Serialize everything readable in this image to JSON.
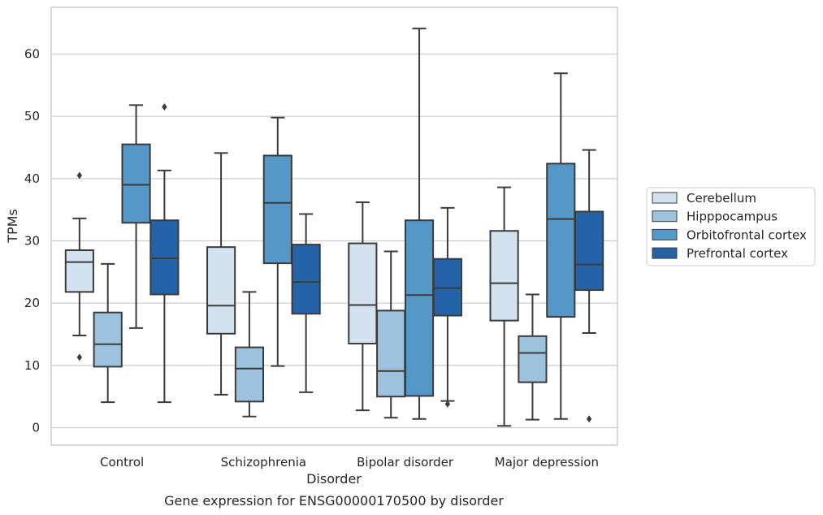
{
  "caption": "Gene expression for ENSG00000170500 by disorder",
  "chart_data": {
    "type": "box",
    "xlabel": "Disorder",
    "ylabel": "TPMs",
    "ylim": [
      -2.8,
      67.5
    ],
    "yticks": [
      0,
      10,
      20,
      30,
      40,
      50,
      60
    ],
    "grid": "horizontal",
    "legend_position": "right",
    "categories": [
      "Control",
      "Schizophrenia",
      "Bipolar disorder",
      "Major depression"
    ],
    "series": [
      {
        "name": "Cerebellum",
        "color": "#d4e2f0",
        "boxes": [
          {
            "whisker_low": 14.8,
            "q1": 21.8,
            "median": 26.6,
            "q3": 28.5,
            "whisker_high": 33.6,
            "outliers": [
              40.5,
              11.3
            ]
          },
          {
            "whisker_low": 5.3,
            "q1": 15.1,
            "median": 19.6,
            "q3": 29.0,
            "whisker_high": 44.1,
            "outliers": []
          },
          {
            "whisker_low": 2.8,
            "q1": 13.5,
            "median": 19.7,
            "q3": 29.6,
            "whisker_high": 36.2,
            "outliers": []
          },
          {
            "whisker_low": 0.3,
            "q1": 17.2,
            "median": 23.2,
            "q3": 31.6,
            "whisker_high": 38.6,
            "outliers": []
          }
        ]
      },
      {
        "name": "Hipppocampus",
        "color": "#9cc2dd",
        "boxes": [
          {
            "whisker_low": 4.1,
            "q1": 9.8,
            "median": 13.4,
            "q3": 18.5,
            "whisker_high": 26.3,
            "outliers": []
          },
          {
            "whisker_low": 1.8,
            "q1": 4.2,
            "median": 9.5,
            "q3": 12.9,
            "whisker_high": 21.8,
            "outliers": []
          },
          {
            "whisker_low": 1.6,
            "q1": 5.0,
            "median": 9.1,
            "q3": 18.8,
            "whisker_high": 28.3,
            "outliers": []
          },
          {
            "whisker_low": 1.3,
            "q1": 7.3,
            "median": 12.0,
            "q3": 14.7,
            "whisker_high": 21.4,
            "outliers": []
          }
        ]
      },
      {
        "name": "Orbitofrontal cortex",
        "color": "#5597c6",
        "boxes": [
          {
            "whisker_low": 16.0,
            "q1": 32.9,
            "median": 39.0,
            "q3": 45.5,
            "whisker_high": 51.8,
            "outliers": []
          },
          {
            "whisker_low": 9.9,
            "q1": 26.4,
            "median": 36.1,
            "q3": 43.7,
            "whisker_high": 49.8,
            "outliers": []
          },
          {
            "whisker_low": 1.4,
            "q1": 5.1,
            "median": 21.3,
            "q3": 33.3,
            "whisker_high": 64.1,
            "outliers": []
          },
          {
            "whisker_low": 1.4,
            "q1": 17.8,
            "median": 33.5,
            "q3": 42.4,
            "whisker_high": 56.9,
            "outliers": []
          }
        ]
      },
      {
        "name": "Prefrontal cortex",
        "color": "#2463a7",
        "boxes": [
          {
            "whisker_low": 4.1,
            "q1": 21.4,
            "median": 27.2,
            "q3": 33.3,
            "whisker_high": 41.3,
            "outliers": [
              51.5
            ]
          },
          {
            "whisker_low": 5.7,
            "q1": 18.3,
            "median": 23.4,
            "q3": 29.4,
            "whisker_high": 34.3,
            "outliers": []
          },
          {
            "whisker_low": 4.3,
            "q1": 18.0,
            "median": 22.4,
            "q3": 27.1,
            "whisker_high": 35.3,
            "outliers": [
              3.8
            ]
          },
          {
            "whisker_low": 15.2,
            "q1": 22.1,
            "median": 26.2,
            "q3": 34.7,
            "whisker_high": 44.6,
            "outliers": [
              1.4
            ]
          }
        ]
      }
    ]
  }
}
